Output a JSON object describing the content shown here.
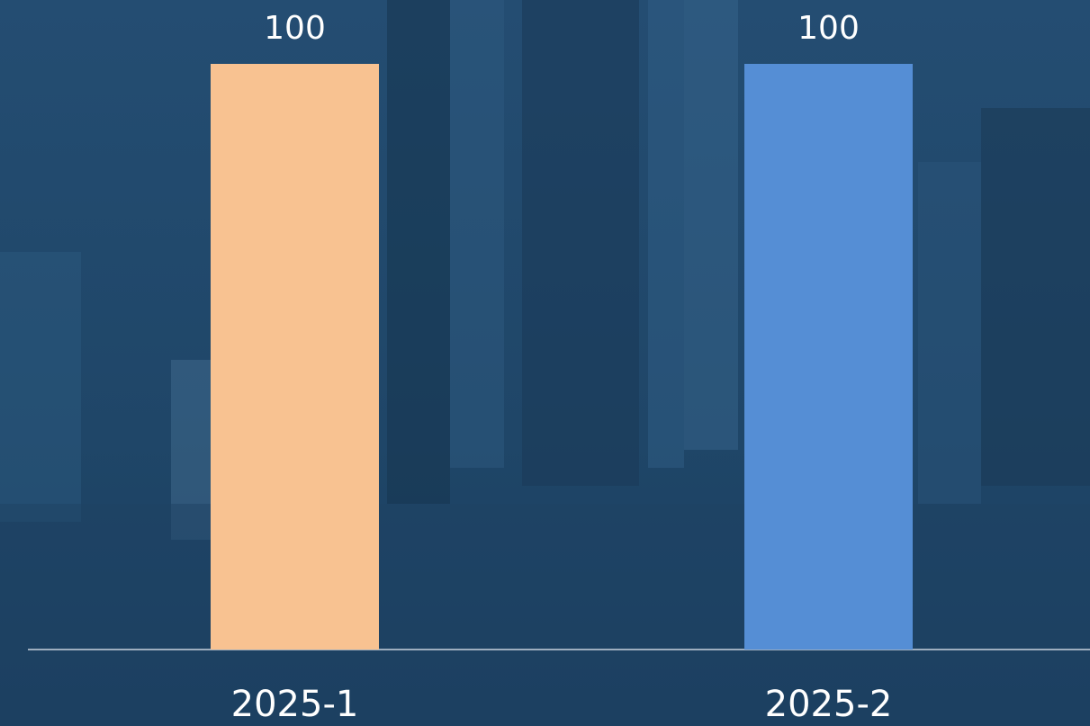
{
  "chart_data": {
    "type": "bar",
    "categories": [
      "2025-1",
      "2025-2"
    ],
    "values": [
      100,
      100
    ],
    "colors": [
      "#f8c291",
      "#558ed5"
    ],
    "ylim": [
      0,
      100
    ]
  }
}
